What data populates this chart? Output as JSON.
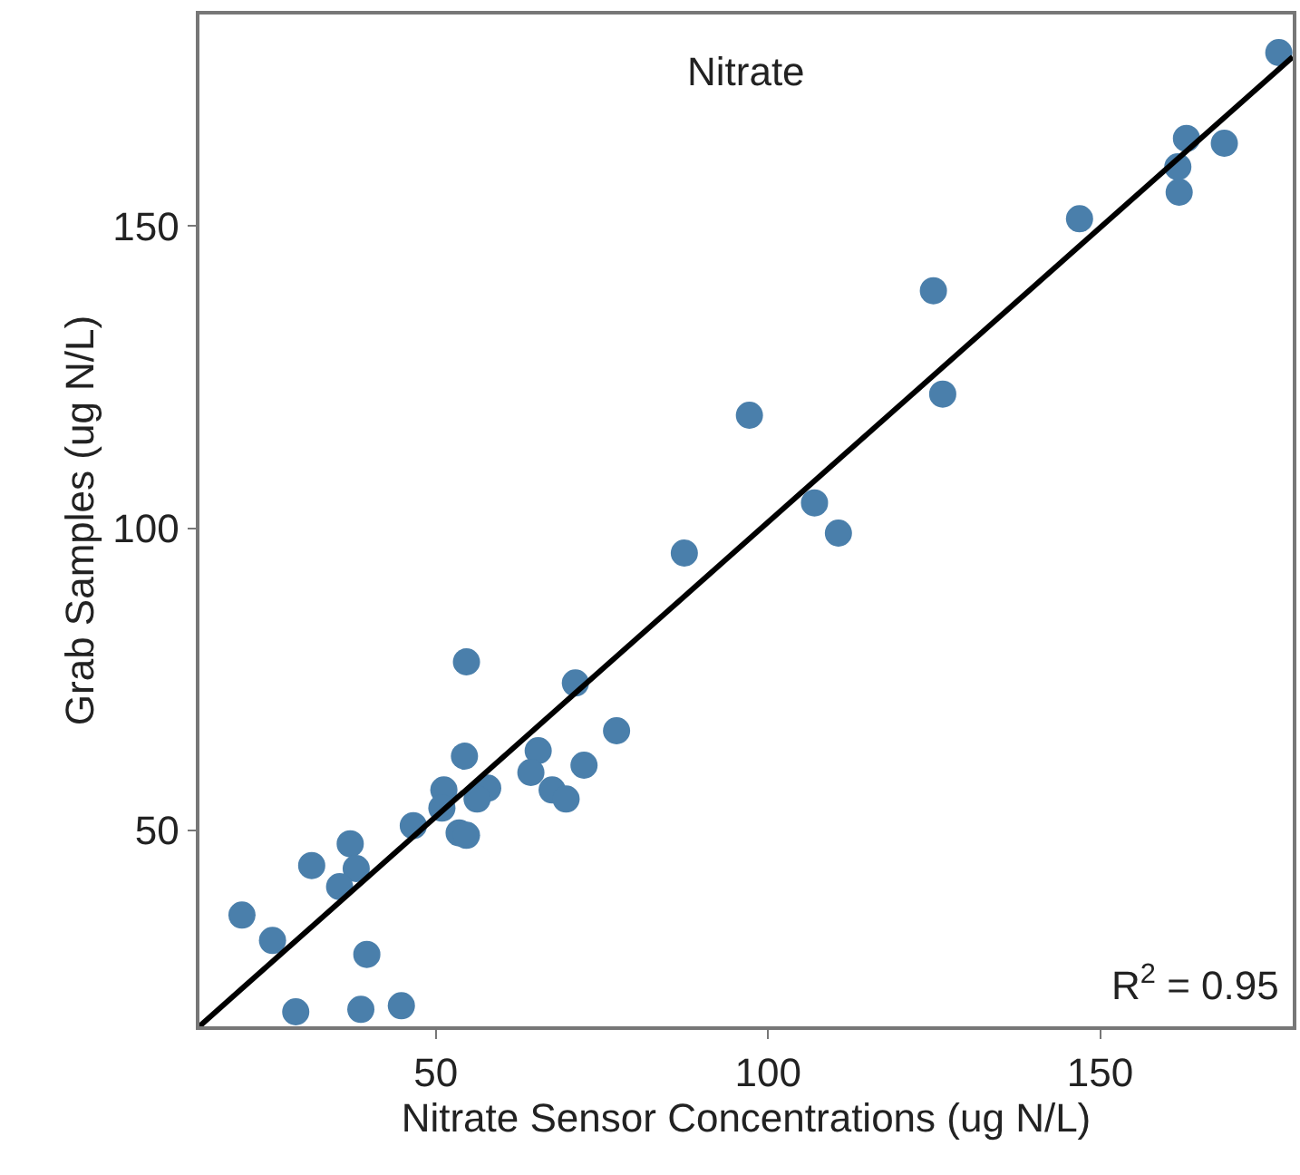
{
  "chart_data": {
    "type": "scatter",
    "title": "Nitrate",
    "xlabel": "Nitrate Sensor Concentrations (ug N/L)",
    "ylabel": "Grab Samples (ug N/L)",
    "annotations": [
      "R$^{2}$ = 0.95"
    ],
    "xlim": [
      14.4,
      179
    ],
    "ylim": [
      17.6,
      185
    ],
    "xticks": [
      50,
      100,
      150
    ],
    "yticks": [
      50,
      100,
      150
    ],
    "series": [
      {
        "marker": "circle",
        "color": "#4a7fab",
        "x": [
          176.9,
          163.0,
          168.7,
          161.7,
          161.9,
          146.9,
          124.9,
          126.3,
          97.2,
          107.0,
          110.6,
          87.4,
          54.6,
          71.0,
          77.2,
          54.3,
          65.4,
          72.3,
          64.3,
          67.5,
          69.6,
          57.8,
          56.2,
          51.2,
          50.9,
          46.6,
          53.5,
          54.6,
          37.1,
          31.3,
          38.0,
          35.5,
          20.8,
          25.4,
          39.6,
          28.9,
          38.7,
          44.8
        ],
        "values": [
          178.7,
          164.5,
          163.7,
          159.8,
          155.6,
          151.2,
          139.3,
          122.2,
          118.7,
          104.2,
          99.2,
          95.9,
          77.9,
          74.4,
          66.5,
          62.3,
          63.2,
          60.8,
          59.6,
          56.7,
          55.2,
          57.0,
          55.2,
          56.7,
          53.7,
          50.8,
          49.6,
          49.2,
          47.8,
          44.2,
          43.7,
          40.7,
          36.0,
          31.8,
          29.5,
          20.0,
          20.4,
          21.0
        ]
      },
      {
        "type": "line",
        "color": "#000000",
        "x": [
          14.4,
          179
        ],
        "values": [
          17.6,
          178
        ]
      }
    ]
  }
}
